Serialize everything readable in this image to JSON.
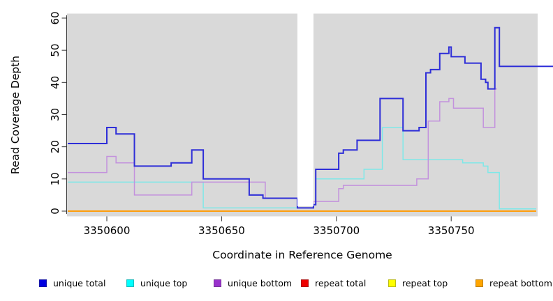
{
  "figure": {
    "x_axis_title": "Coordinate in Reference Genome",
    "y_axis_title": "Read Coverage Depth",
    "plot_background": "#d9d9d9",
    "gap_band_color": "#ffffff",
    "axis_color": "#333333",
    "tick_label_color": "#000000"
  },
  "legend": {
    "items": [
      {
        "label": "unique total",
        "color": "#0000e0"
      },
      {
        "label": "unique top",
        "color": "#00ffff"
      },
      {
        "label": "unique bottom",
        "color": "#9932cc"
      },
      {
        "label": "repeat total",
        "color": "#ee0000"
      },
      {
        "label": "repeat top",
        "color": "#ffff00"
      },
      {
        "label": "repeat bottom",
        "color": "#ffa500"
      }
    ]
  },
  "chart_data": {
    "type": "line",
    "step": true,
    "title": "",
    "xlabel": "Coordinate in Reference Genome",
    "ylabel": "Read Coverage Depth",
    "xlim": [
      3350583,
      3350795
    ],
    "ylim": [
      0,
      62
    ],
    "grid": false,
    "legend_position": "bottom",
    "x_ticks": [
      3350600,
      3350650,
      3350700,
      3350750
    ],
    "x_tick_labels": [
      "3350600",
      "3350650",
      "3350700",
      "3350750"
    ],
    "y_ticks": [
      0,
      10,
      20,
      30,
      40,
      50,
      60
    ],
    "y_tick_labels": [
      "0",
      "10",
      "20",
      "30",
      "40",
      "50",
      "60"
    ],
    "gap_region": {
      "x_start": 3350683,
      "x_end": 3350690
    },
    "series": [
      {
        "name": "repeat total",
        "color": "#dd0000",
        "width": 1.5,
        "end": 3350787,
        "steps": [
          [
            3350583,
            0
          ]
        ]
      },
      {
        "name": "repeat top",
        "color": "#ffff00",
        "width": 1.5,
        "end": 3350787,
        "steps": [
          [
            3350583,
            0
          ]
        ]
      },
      {
        "name": "repeat bottom",
        "color": "#ff9d0a",
        "width": 2,
        "end": 3350787,
        "steps": [
          [
            3350583,
            0
          ]
        ]
      },
      {
        "name": "unique top",
        "color": "#7fe8e8",
        "width": 1.5,
        "end": 3350787,
        "steps": [
          [
            3350583,
            9
          ],
          [
            3350642,
            1
          ],
          [
            3350690,
            2
          ],
          [
            3350691,
            10
          ],
          [
            3350712,
            13
          ],
          [
            3350720,
            26
          ],
          [
            3350729,
            16
          ],
          [
            3350755,
            15
          ],
          [
            3350764,
            14
          ],
          [
            3350766,
            12
          ],
          [
            3350771,
            0
          ]
        ]
      },
      {
        "name": "unique bottom",
        "color": "#c392dd",
        "width": 1.5,
        "end": 3350770,
        "steps": [
          [
            3350583,
            12
          ],
          [
            3350600,
            17
          ],
          [
            3350604,
            15
          ],
          [
            3350612,
            5
          ],
          [
            3350637,
            9
          ],
          [
            3350669,
            4
          ],
          [
            3350683,
            1
          ],
          [
            3350690,
            3
          ],
          [
            3350701,
            7
          ],
          [
            3350703,
            8
          ],
          [
            3350735,
            10
          ],
          [
            3350740,
            28
          ],
          [
            3350745,
            34
          ],
          [
            3350749,
            35
          ],
          [
            3350751,
            32
          ],
          [
            3350764,
            26
          ],
          [
            3350769,
            38
          ]
        ]
      },
      {
        "name": "unique total",
        "color": "#2e2ed8",
        "width": 2,
        "end": 3350795,
        "steps": [
          [
            3350583,
            21
          ],
          [
            3350600,
            26
          ],
          [
            3350604,
            24
          ],
          [
            3350612,
            14
          ],
          [
            3350628,
            15
          ],
          [
            3350637,
            19
          ],
          [
            3350642,
            10
          ],
          [
            3350662,
            5
          ],
          [
            3350668,
            4
          ],
          [
            3350683,
            1
          ],
          [
            3350690,
            2
          ],
          [
            3350691,
            13
          ],
          [
            3350701,
            18
          ],
          [
            3350703,
            19
          ],
          [
            3350709,
            22
          ],
          [
            3350719,
            35
          ],
          [
            3350729,
            25
          ],
          [
            3350736,
            26
          ],
          [
            3350739,
            43
          ],
          [
            3350741,
            44
          ],
          [
            3350745,
            49
          ],
          [
            3350749,
            51
          ],
          [
            3350750,
            48
          ],
          [
            3350756,
            46
          ],
          [
            3350763,
            41
          ],
          [
            3350765,
            40
          ],
          [
            3350766,
            38
          ],
          [
            3350769,
            57
          ],
          [
            3350771,
            45
          ]
        ]
      }
    ]
  }
}
